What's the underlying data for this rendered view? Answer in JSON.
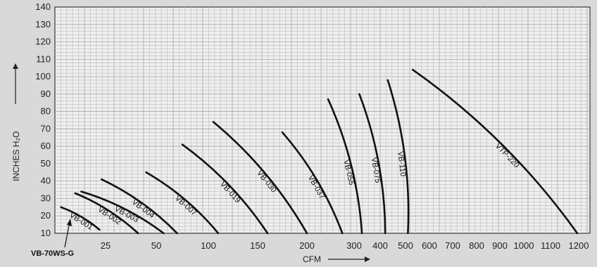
{
  "chart_data": {
    "type": "line",
    "title": "",
    "xlabel": "CFM",
    "ylabel": "INCHES H₂O",
    "xlim": [
      0,
      1200
    ],
    "ylim": [
      10,
      140
    ],
    "grid": true,
    "x_ticks": [
      {
        "value": 25,
        "label": "25"
      },
      {
        "value": 50,
        "label": "50"
      },
      {
        "value": 100,
        "label": "100"
      },
      {
        "value": 150,
        "label": "150"
      },
      {
        "value": 200,
        "label": "200"
      },
      {
        "value": 300,
        "label": "300"
      },
      {
        "value": 400,
        "label": "400"
      },
      {
        "value": 500,
        "label": "500"
      },
      {
        "value": 600,
        "label": "600"
      },
      {
        "value": 700,
        "label": "700"
      },
      {
        "value": 800,
        "label": "800"
      },
      {
        "value": 900,
        "label": "900"
      },
      {
        "value": 1000,
        "label": "1000"
      },
      {
        "value": 1100,
        "label": "1100"
      },
      {
        "value": 1200,
        "label": "1200"
      }
    ],
    "y_ticks": [
      10,
      20,
      30,
      40,
      50,
      60,
      70,
      80,
      90,
      100,
      110,
      120,
      130,
      140
    ],
    "y_tick_labels": [
      "10",
      "20",
      "30",
      "40",
      "50",
      "60",
      "70",
      "80",
      "90",
      "100",
      "110",
      "120",
      "130",
      "140"
    ],
    "series": [
      {
        "name": "VB-001",
        "points": [
          [
            3,
            25
          ],
          [
            22,
            12
          ]
        ]
      },
      {
        "name": "VB-002",
        "points": [
          [
            10,
            33
          ],
          [
            41,
            10
          ]
        ]
      },
      {
        "name": "VB-003",
        "points": [
          [
            13,
            34
          ],
          [
            57,
            10
          ]
        ]
      },
      {
        "name": "VB-004",
        "points": [
          [
            23,
            41
          ],
          [
            70,
            10
          ]
        ]
      },
      {
        "name": "VB-007",
        "points": [
          [
            45,
            45
          ],
          [
            110,
            10
          ]
        ]
      },
      {
        "name": "VB-019",
        "points": [
          [
            75,
            61
          ],
          [
            160,
            10
          ]
        ]
      },
      {
        "name": "VB-030",
        "points": [
          [
            105,
            74
          ],
          [
            200,
            10
          ]
        ]
      },
      {
        "name": "VB-037",
        "points": [
          [
            175,
            68
          ],
          [
            275,
            10
          ]
        ]
      },
      {
        "name": "VB-055",
        "points": [
          [
            245,
            87
          ],
          [
            330,
            10
          ]
        ]
      },
      {
        "name": "VB-075",
        "points": [
          [
            320,
            90
          ],
          [
            420,
            10
          ]
        ]
      },
      {
        "name": "VB-110",
        "points": [
          [
            430,
            98
          ],
          [
            510,
            10
          ]
        ]
      },
      {
        "name": "VTP-220",
        "points": [
          [
            530,
            104
          ],
          [
            1195,
            10
          ]
        ]
      }
    ],
    "annotations": [
      {
        "text": "VB-70WS-G",
        "x": 5,
        "y": 10
      }
    ]
  }
}
